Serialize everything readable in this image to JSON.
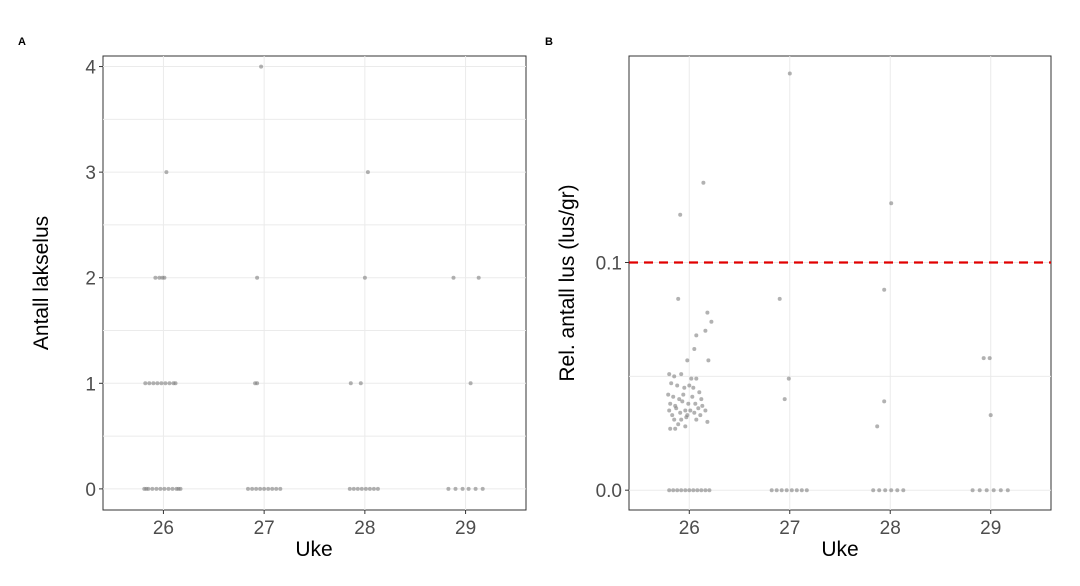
{
  "chart_data": [
    {
      "panel": "A",
      "type": "scatter",
      "xlabel": "Uke",
      "ylabel": "Antall lakselus",
      "categories": [
        "26",
        "27",
        "28",
        "29"
      ],
      "yticks": [
        0,
        1,
        2,
        3,
        4
      ],
      "ylim": [
        -0.2,
        4.1
      ],
      "grid": true,
      "points": [
        {
          "x": "26",
          "dx": -0.19,
          "y": 0
        },
        {
          "x": "26",
          "dx": -0.15,
          "y": 0
        },
        {
          "x": "26",
          "dx": -0.11,
          "y": 0
        },
        {
          "x": "26",
          "dx": -0.07,
          "y": 0
        },
        {
          "x": "26",
          "dx": -0.03,
          "y": 0
        },
        {
          "x": "26",
          "dx": 0.01,
          "y": 0
        },
        {
          "x": "26",
          "dx": 0.05,
          "y": 0
        },
        {
          "x": "26",
          "dx": 0.09,
          "y": 0
        },
        {
          "x": "26",
          "dx": 0.13,
          "y": 0
        },
        {
          "x": "26",
          "dx": 0.17,
          "y": 0
        },
        {
          "x": "26",
          "dx": -0.17,
          "y": 0
        },
        {
          "x": "26",
          "dx": 0.15,
          "y": 0
        },
        {
          "x": "26",
          "dx": -0.18,
          "y": 1
        },
        {
          "x": "26",
          "dx": -0.14,
          "y": 1
        },
        {
          "x": "26",
          "dx": -0.1,
          "y": 1
        },
        {
          "x": "26",
          "dx": -0.06,
          "y": 1
        },
        {
          "x": "26",
          "dx": -0.02,
          "y": 1
        },
        {
          "x": "26",
          "dx": 0.02,
          "y": 1
        },
        {
          "x": "26",
          "dx": 0.06,
          "y": 1
        },
        {
          "x": "26",
          "dx": 0.1,
          "y": 1
        },
        {
          "x": "26",
          "dx": 0.12,
          "y": 1
        },
        {
          "x": "26",
          "dx": -0.08,
          "y": 2
        },
        {
          "x": "26",
          "dx": -0.04,
          "y": 2
        },
        {
          "x": "26",
          "dx": -0.01,
          "y": 2
        },
        {
          "x": "26",
          "dx": 0.01,
          "y": 2
        },
        {
          "x": "26",
          "dx": 0.03,
          "y": 3
        },
        {
          "x": "27",
          "dx": -0.16,
          "y": 0
        },
        {
          "x": "27",
          "dx": -0.12,
          "y": 0
        },
        {
          "x": "27",
          "dx": -0.08,
          "y": 0
        },
        {
          "x": "27",
          "dx": -0.04,
          "y": 0
        },
        {
          "x": "27",
          "dx": 0.0,
          "y": 0
        },
        {
          "x": "27",
          "dx": 0.04,
          "y": 0
        },
        {
          "x": "27",
          "dx": 0.08,
          "y": 0
        },
        {
          "x": "27",
          "dx": 0.12,
          "y": 0
        },
        {
          "x": "27",
          "dx": 0.16,
          "y": 0
        },
        {
          "x": "27",
          "dx": -0.09,
          "y": 1
        },
        {
          "x": "27",
          "dx": -0.07,
          "y": 1
        },
        {
          "x": "27",
          "dx": -0.07,
          "y": 2
        },
        {
          "x": "27",
          "dx": -0.03,
          "y": 4
        },
        {
          "x": "28",
          "dx": -0.15,
          "y": 0
        },
        {
          "x": "28",
          "dx": -0.11,
          "y": 0
        },
        {
          "x": "28",
          "dx": -0.07,
          "y": 0
        },
        {
          "x": "28",
          "dx": -0.03,
          "y": 0
        },
        {
          "x": "28",
          "dx": 0.01,
          "y": 0
        },
        {
          "x": "28",
          "dx": 0.05,
          "y": 0
        },
        {
          "x": "28",
          "dx": 0.09,
          "y": 0
        },
        {
          "x": "28",
          "dx": 0.13,
          "y": 0
        },
        {
          "x": "28",
          "dx": -0.14,
          "y": 1
        },
        {
          "x": "28",
          "dx": -0.04,
          "y": 1
        },
        {
          "x": "28",
          "dx": 0.0,
          "y": 2
        },
        {
          "x": "28",
          "dx": 0.03,
          "y": 3
        },
        {
          "x": "29",
          "dx": -0.17,
          "y": 0
        },
        {
          "x": "29",
          "dx": -0.1,
          "y": 0
        },
        {
          "x": "29",
          "dx": -0.03,
          "y": 0
        },
        {
          "x": "29",
          "dx": 0.03,
          "y": 0
        },
        {
          "x": "29",
          "dx": 0.1,
          "y": 0
        },
        {
          "x": "29",
          "dx": 0.17,
          "y": 0
        },
        {
          "x": "29",
          "dx": 0.05,
          "y": 1
        },
        {
          "x": "29",
          "dx": -0.12,
          "y": 2
        },
        {
          "x": "29",
          "dx": 0.13,
          "y": 2
        }
      ]
    },
    {
      "panel": "B",
      "type": "scatter",
      "xlabel": "Uke",
      "ylabel": "Rel. antall lus (lus/gr)",
      "categories": [
        "26",
        "27",
        "28",
        "29"
      ],
      "yticks": [
        0.0,
        0.1
      ],
      "ytick_labels": [
        "0.0",
        "0.1"
      ],
      "ylim": [
        -0.0087,
        0.1907
      ],
      "grid": true,
      "reference_line": {
        "y": 0.1,
        "color": "#e00000",
        "style": "dashed"
      },
      "points": [
        {
          "x": "26",
          "dx": -0.2,
          "y": 0
        },
        {
          "x": "26",
          "dx": -0.16,
          "y": 0
        },
        {
          "x": "26",
          "dx": -0.12,
          "y": 0
        },
        {
          "x": "26",
          "dx": -0.08,
          "y": 0
        },
        {
          "x": "26",
          "dx": -0.04,
          "y": 0
        },
        {
          "x": "26",
          "dx": 0.0,
          "y": 0
        },
        {
          "x": "26",
          "dx": 0.04,
          "y": 0
        },
        {
          "x": "26",
          "dx": 0.08,
          "y": 0
        },
        {
          "x": "26",
          "dx": 0.12,
          "y": 0
        },
        {
          "x": "26",
          "dx": 0.16,
          "y": 0
        },
        {
          "x": "26",
          "dx": 0.2,
          "y": 0
        },
        {
          "x": "26",
          "dx": -0.09,
          "y": 0.121
        },
        {
          "x": "26",
          "dx": 0.14,
          "y": 0.135
        },
        {
          "x": "26",
          "dx": -0.11,
          "y": 0.084
        },
        {
          "x": "26",
          "dx": 0.18,
          "y": 0.078
        },
        {
          "x": "26",
          "dx": 0.22,
          "y": 0.074
        },
        {
          "x": "26",
          "dx": 0.16,
          "y": 0.07
        },
        {
          "x": "26",
          "dx": 0.07,
          "y": 0.068
        },
        {
          "x": "26",
          "dx": 0.19,
          "y": 0.057
        },
        {
          "x": "26",
          "dx": -0.02,
          "y": 0.057
        },
        {
          "x": "26",
          "dx": 0.05,
          "y": 0.062
        },
        {
          "x": "26",
          "dx": -0.2,
          "y": 0.051
        },
        {
          "x": "26",
          "dx": -0.15,
          "y": 0.05
        },
        {
          "x": "26",
          "dx": -0.08,
          "y": 0.051
        },
        {
          "x": "26",
          "dx": 0.02,
          "y": 0.049
        },
        {
          "x": "26",
          "dx": 0.07,
          "y": 0.049
        },
        {
          "x": "26",
          "dx": -0.18,
          "y": 0.047
        },
        {
          "x": "26",
          "dx": -0.12,
          "y": 0.046
        },
        {
          "x": "26",
          "dx": -0.05,
          "y": 0.045
        },
        {
          "x": "26",
          "dx": 0.0,
          "y": 0.046
        },
        {
          "x": "26",
          "dx": 0.04,
          "y": 0.045
        },
        {
          "x": "26",
          "dx": 0.1,
          "y": 0.043
        },
        {
          "x": "26",
          "dx": -0.21,
          "y": 0.042
        },
        {
          "x": "26",
          "dx": -0.16,
          "y": 0.041
        },
        {
          "x": "26",
          "dx": -0.1,
          "y": 0.04
        },
        {
          "x": "26",
          "dx": -0.06,
          "y": 0.042
        },
        {
          "x": "26",
          "dx": 0.03,
          "y": 0.041
        },
        {
          "x": "26",
          "dx": 0.12,
          "y": 0.04
        },
        {
          "x": "26",
          "dx": -0.19,
          "y": 0.038
        },
        {
          "x": "26",
          "dx": -0.14,
          "y": 0.037
        },
        {
          "x": "26",
          "dx": -0.07,
          "y": 0.039
        },
        {
          "x": "26",
          "dx": -0.01,
          "y": 0.038
        },
        {
          "x": "26",
          "dx": 0.06,
          "y": 0.038
        },
        {
          "x": "26",
          "dx": 0.13,
          "y": 0.037
        },
        {
          "x": "26",
          "dx": -0.2,
          "y": 0.035
        },
        {
          "x": "26",
          "dx": -0.13,
          "y": 0.036
        },
        {
          "x": "26",
          "dx": -0.04,
          "y": 0.035
        },
        {
          "x": "26",
          "dx": 0.01,
          "y": 0.035
        },
        {
          "x": "26",
          "dx": 0.09,
          "y": 0.036
        },
        {
          "x": "26",
          "dx": 0.16,
          "y": 0.035
        },
        {
          "x": "26",
          "dx": -0.17,
          "y": 0.033
        },
        {
          "x": "26",
          "dx": -0.09,
          "y": 0.034
        },
        {
          "x": "26",
          "dx": -0.02,
          "y": 0.033
        },
        {
          "x": "26",
          "dx": 0.05,
          "y": 0.034
        },
        {
          "x": "26",
          "dx": 0.11,
          "y": 0.033
        },
        {
          "x": "26",
          "dx": -0.15,
          "y": 0.031
        },
        {
          "x": "26",
          "dx": -0.08,
          "y": 0.031
        },
        {
          "x": "26",
          "dx": -0.03,
          "y": 0.032
        },
        {
          "x": "26",
          "dx": 0.07,
          "y": 0.031
        },
        {
          "x": "26",
          "dx": 0.18,
          "y": 0.03
        },
        {
          "x": "26",
          "dx": -0.19,
          "y": 0.027
        },
        {
          "x": "26",
          "dx": -0.14,
          "y": 0.027
        },
        {
          "x": "26",
          "dx": -0.11,
          "y": 0.029
        },
        {
          "x": "26",
          "dx": -0.04,
          "y": 0.028
        },
        {
          "x": "27",
          "dx": -0.18,
          "y": 0
        },
        {
          "x": "27",
          "dx": -0.13,
          "y": 0
        },
        {
          "x": "27",
          "dx": -0.08,
          "y": 0
        },
        {
          "x": "27",
          "dx": -0.03,
          "y": 0
        },
        {
          "x": "27",
          "dx": 0.02,
          "y": 0
        },
        {
          "x": "27",
          "dx": 0.07,
          "y": 0
        },
        {
          "x": "27",
          "dx": 0.12,
          "y": 0
        },
        {
          "x": "27",
          "dx": 0.17,
          "y": 0
        },
        {
          "x": "27",
          "dx": 0.0,
          "y": 0.183
        },
        {
          "x": "27",
          "dx": -0.1,
          "y": 0.084
        },
        {
          "x": "27",
          "dx": -0.01,
          "y": 0.049
        },
        {
          "x": "27",
          "dx": -0.05,
          "y": 0.04
        },
        {
          "x": "28",
          "dx": -0.17,
          "y": 0
        },
        {
          "x": "28",
          "dx": -0.11,
          "y": 0
        },
        {
          "x": "28",
          "dx": -0.05,
          "y": 0
        },
        {
          "x": "28",
          "dx": 0.01,
          "y": 0
        },
        {
          "x": "28",
          "dx": 0.07,
          "y": 0
        },
        {
          "x": "28",
          "dx": 0.13,
          "y": 0
        },
        {
          "x": "28",
          "dx": 0.01,
          "y": 0.126
        },
        {
          "x": "28",
          "dx": -0.06,
          "y": 0.088
        },
        {
          "x": "28",
          "dx": -0.06,
          "y": 0.039
        },
        {
          "x": "28",
          "dx": -0.13,
          "y": 0.028
        },
        {
          "x": "29",
          "dx": -0.18,
          "y": 0
        },
        {
          "x": "29",
          "dx": -0.11,
          "y": 0
        },
        {
          "x": "29",
          "dx": -0.04,
          "y": 0
        },
        {
          "x": "29",
          "dx": 0.03,
          "y": 0
        },
        {
          "x": "29",
          "dx": 0.1,
          "y": 0
        },
        {
          "x": "29",
          "dx": 0.17,
          "y": 0
        },
        {
          "x": "29",
          "dx": -0.07,
          "y": 0.058
        },
        {
          "x": "29",
          "dx": -0.01,
          "y": 0.058
        },
        {
          "x": "29",
          "dx": 0.0,
          "y": 0.033
        }
      ]
    }
  ]
}
